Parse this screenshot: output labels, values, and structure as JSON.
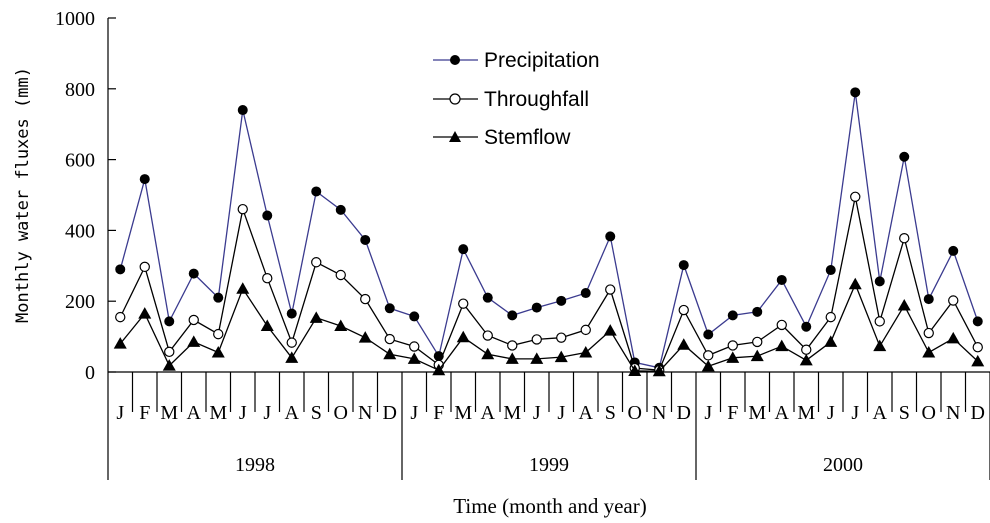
{
  "chart_data": {
    "type": "line",
    "title": "",
    "xlabel": "Time (month and year)",
    "ylabel": "Monthly water fluxes (mm)",
    "ylim": [
      0,
      1000
    ],
    "yticks": [
      "0",
      "200",
      "400",
      "600",
      "800",
      "1000"
    ],
    "months": [
      "J",
      "F",
      "M",
      "A",
      "M",
      "J",
      "J",
      "A",
      "S",
      "O",
      "N",
      "D",
      "J",
      "F",
      "M",
      "A",
      "M",
      "J",
      "J",
      "A",
      "S",
      "O",
      "N",
      "D",
      "J",
      "F",
      "M",
      "A",
      "M",
      "J",
      "J",
      "A",
      "S",
      "O",
      "N",
      "D"
    ],
    "years": [
      "1998",
      "1999",
      "2000"
    ],
    "legend_position": "top-center",
    "grid": false,
    "series": [
      {
        "name": "Precipitation",
        "marker": "filled-circle",
        "line_color": "#3b3b8f",
        "values": [
          290,
          545,
          143,
          278,
          210,
          740,
          442,
          165,
          510,
          458,
          373,
          180,
          157,
          45,
          347,
          210,
          160,
          182,
          201,
          223,
          383,
          27,
          12,
          302,
          106,
          160,
          170,
          260,
          128,
          288,
          790,
          256,
          608,
          206,
          342,
          143
        ]
      },
      {
        "name": "Throughfall",
        "marker": "open-circle",
        "line_color": "#000000",
        "values": [
          155,
          297,
          57,
          147,
          107,
          460,
          265,
          83,
          310,
          274,
          206,
          93,
          72,
          20,
          193,
          103,
          75,
          92,
          97,
          119,
          233,
          11,
          5,
          175,
          47,
          75,
          85,
          133,
          63,
          155,
          495,
          143,
          378,
          110,
          202,
          70
        ]
      },
      {
        "name": "Stemflow",
        "marker": "filled-triangle",
        "line_color": "#000000",
        "values": [
          80,
          165,
          18,
          85,
          55,
          235,
          130,
          40,
          153,
          130,
          97,
          50,
          37,
          5,
          98,
          50,
          37,
          37,
          42,
          55,
          117,
          3,
          2,
          77,
          16,
          40,
          45,
          73,
          33,
          85,
          248,
          73,
          188,
          55,
          95,
          30
        ]
      }
    ]
  }
}
